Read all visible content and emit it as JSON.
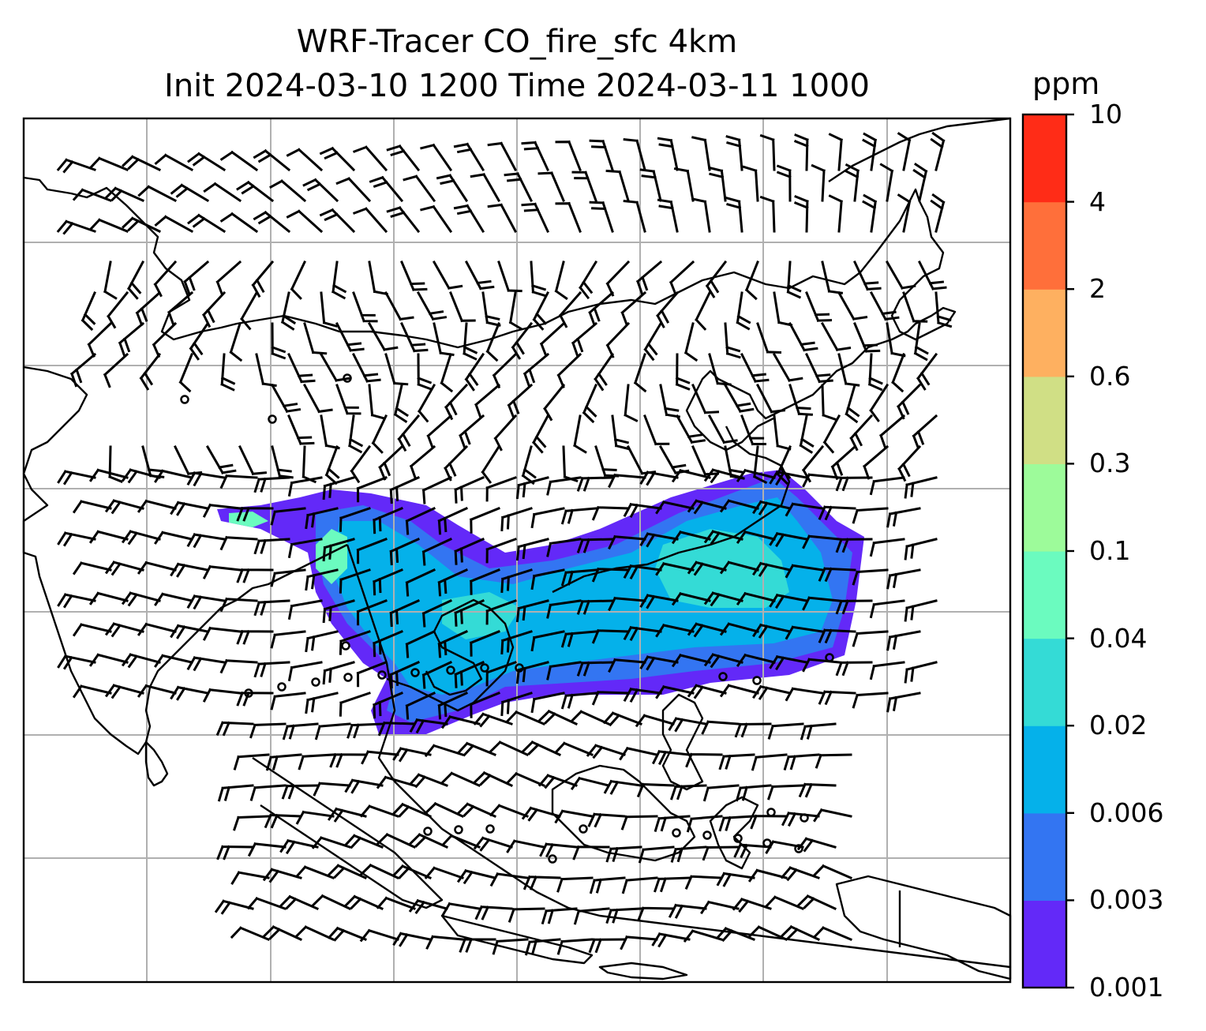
{
  "title": {
    "line1": "WRF-Tracer CO_fire_sfc 4km",
    "line2": "Init 2024-03-10 1200 Time 2024-03-11 1000"
  },
  "colorbar": {
    "unit": "ppm",
    "levels": [
      "0.001",
      "0.003",
      "0.006",
      "0.02",
      "0.04",
      "0.1",
      "0.3",
      "0.6",
      "2",
      "4",
      "10"
    ],
    "colors": [
      "#6329f8",
      "#3375f2",
      "#05b1ea",
      "#34dbd6",
      "#6bfbbf",
      "#9dfb9a",
      "#d0df85",
      "#feb060",
      "#ff6f3a",
      "#ff2c17"
    ]
  },
  "map": {
    "gridline_color": "#b0b0b0",
    "coastline_color": "#000000",
    "wind_barb_color": "#000000"
  }
}
